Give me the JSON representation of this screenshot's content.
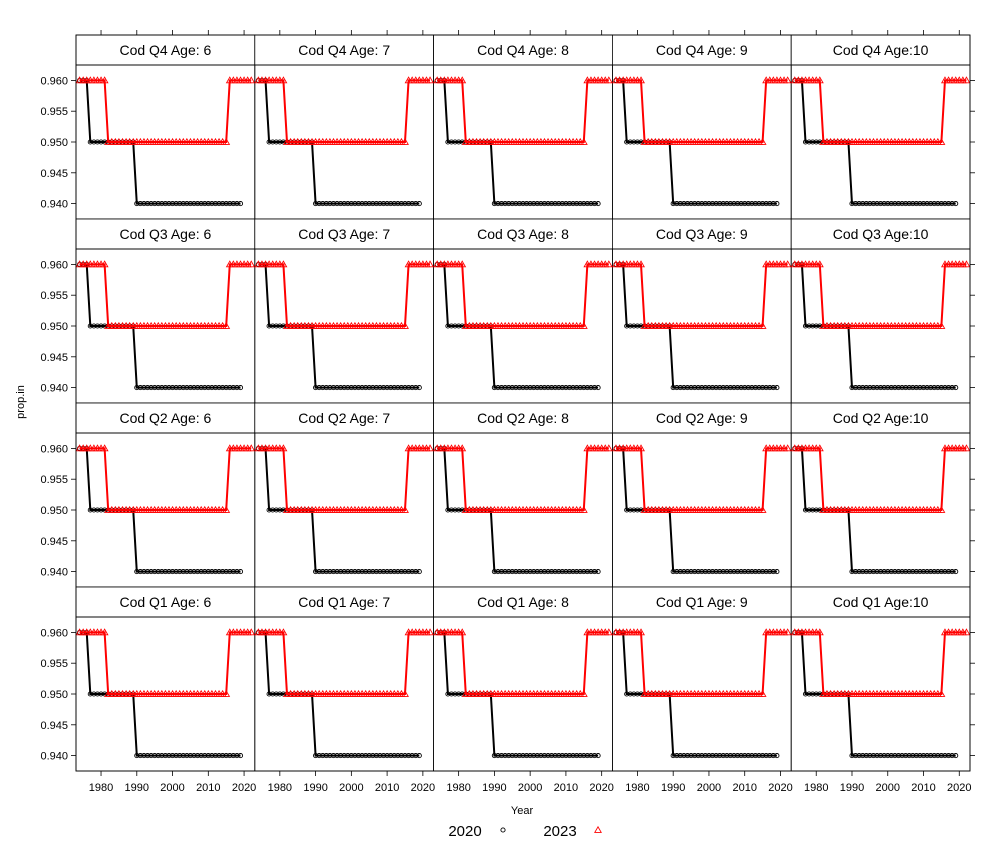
{
  "chart_data": {
    "type": "line",
    "layout": {
      "columns": 5,
      "rows": 4
    },
    "xlabel": "Year",
    "ylabel": "prop.in",
    "xlim": [
      1973,
      2023
    ],
    "ylim": [
      0.9375,
      0.9625
    ],
    "x_ticks": [
      1980,
      1990,
      2000,
      2010,
      2020
    ],
    "y_ticks": [
      0.94,
      0.945,
      0.95,
      0.955,
      0.96
    ],
    "y_tick_labels": [
      "0.940",
      "0.945",
      "0.950",
      "0.955",
      "0.960"
    ],
    "legend": {
      "placement": "bottom",
      "items": [
        {
          "name": "2020",
          "color": "#000000",
          "marker": "circle"
        },
        {
          "name": "2023",
          "color": "#ff0000",
          "marker": "triangle"
        }
      ]
    },
    "panels": [
      {
        "title": "Cod Q4 Age: 6",
        "row": 0,
        "col": 0
      },
      {
        "title": "Cod Q4 Age: 7",
        "row": 0,
        "col": 1
      },
      {
        "title": "Cod Q4 Age: 8",
        "row": 0,
        "col": 2
      },
      {
        "title": "Cod Q4 Age: 9",
        "row": 0,
        "col": 3
      },
      {
        "title": "Cod Q4 Age:10",
        "row": 0,
        "col": 4
      },
      {
        "title": "Cod Q3 Age: 6",
        "row": 1,
        "col": 0
      },
      {
        "title": "Cod Q3 Age: 7",
        "row": 1,
        "col": 1
      },
      {
        "title": "Cod Q3 Age: 8",
        "row": 1,
        "col": 2
      },
      {
        "title": "Cod Q3 Age: 9",
        "row": 1,
        "col": 3
      },
      {
        "title": "Cod Q3 Age:10",
        "row": 1,
        "col": 4
      },
      {
        "title": "Cod Q2 Age: 6",
        "row": 2,
        "col": 0
      },
      {
        "title": "Cod Q2 Age: 7",
        "row": 2,
        "col": 1
      },
      {
        "title": "Cod Q2 Age: 8",
        "row": 2,
        "col": 2
      },
      {
        "title": "Cod Q2 Age: 9",
        "row": 2,
        "col": 3
      },
      {
        "title": "Cod Q2 Age:10",
        "row": 2,
        "col": 4
      },
      {
        "title": "Cod Q1 Age: 6",
        "row": 3,
        "col": 0
      },
      {
        "title": "Cod Q1 Age: 7",
        "row": 3,
        "col": 1
      },
      {
        "title": "Cod Q1 Age: 8",
        "row": 3,
        "col": 2
      },
      {
        "title": "Cod Q1 Age: 9",
        "row": 3,
        "col": 3
      },
      {
        "title": "Cod Q1 Age:10",
        "row": 3,
        "col": 4
      }
    ],
    "series": [
      {
        "name": "2020",
        "color": "#000000",
        "marker": "circle",
        "segments": [
          {
            "x_from": 1974,
            "x_to": 1976,
            "y": 0.96
          },
          {
            "x_from": 1977,
            "x_to": 1989,
            "y": 0.95
          },
          {
            "x_from": 1990,
            "x_to": 2019,
            "y": 0.94
          }
        ]
      },
      {
        "name": "2023",
        "color": "#ff0000",
        "marker": "triangle",
        "segments": [
          {
            "x_from": 1974,
            "x_to": 1981,
            "y": 0.96
          },
          {
            "x_from": 1982,
            "x_to": 2015,
            "y": 0.95
          },
          {
            "x_from": 2016,
            "x_to": 2022,
            "y": 0.96
          }
        ]
      }
    ]
  }
}
